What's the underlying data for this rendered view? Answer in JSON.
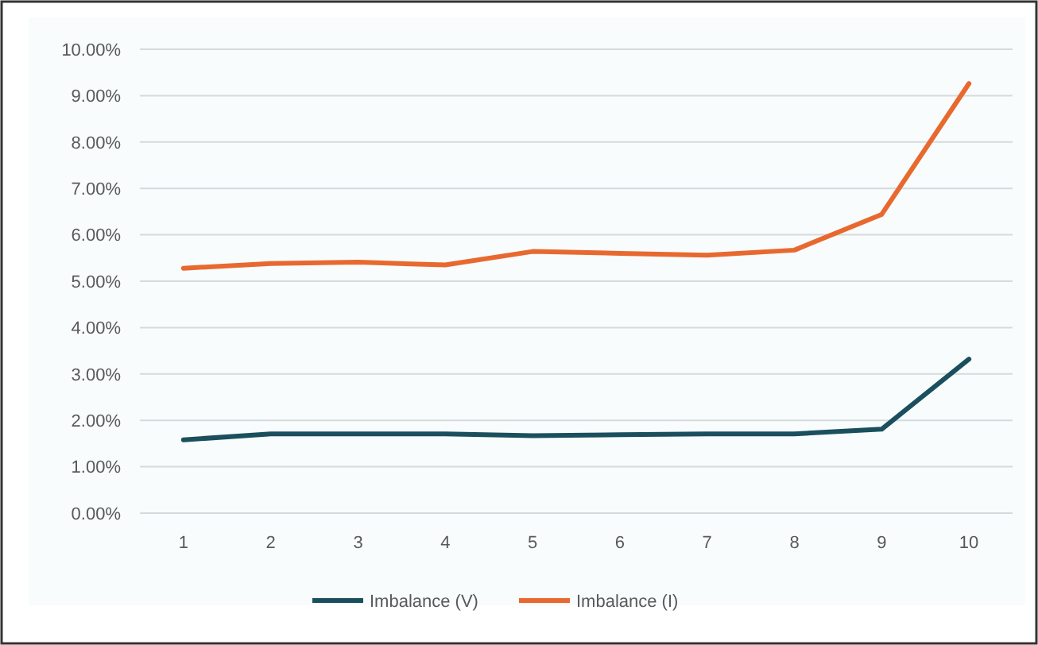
{
  "chart_data": {
    "type": "line",
    "categories": [
      "1",
      "2",
      "3",
      "4",
      "5",
      "6",
      "7",
      "8",
      "9",
      "10"
    ],
    "series": [
      {
        "name": "Imbalance (V)",
        "color": "#1b4f5e",
        "values": [
          1.58,
          1.71,
          1.71,
          1.71,
          1.67,
          1.69,
          1.71,
          1.71,
          1.81,
          3.32
        ]
      },
      {
        "name": "Imbalance (I)",
        "color": "#e8692f",
        "values": [
          5.28,
          5.38,
          5.41,
          5.35,
          5.64,
          5.6,
          5.56,
          5.67,
          6.44,
          9.26
        ]
      }
    ],
    "ylim": [
      0,
      10
    ],
    "yticks": [
      {
        "value": 0,
        "label": "0.00%"
      },
      {
        "value": 1,
        "label": "1.00%"
      },
      {
        "value": 2,
        "label": "2.00%"
      },
      {
        "value": 3,
        "label": "3.00%"
      },
      {
        "value": 4,
        "label": "4.00%"
      },
      {
        "value": 5,
        "label": "5.00%"
      },
      {
        "value": 6,
        "label": "6.00%"
      },
      {
        "value": 7,
        "label": "7.00%"
      },
      {
        "value": 8,
        "label": "8.00%"
      },
      {
        "value": 9,
        "label": "9.00%"
      },
      {
        "value": 10,
        "label": "10.00%"
      }
    ],
    "grid": "y",
    "legend": "bottom",
    "marker": "none",
    "line_style": "solid"
  }
}
